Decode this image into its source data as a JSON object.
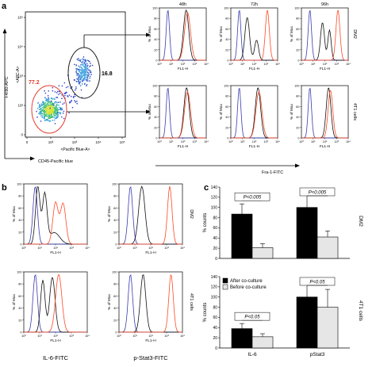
{
  "panel_labels": [
    "a",
    "b",
    "c"
  ],
  "colors": {
    "blue": "#3a3ab0",
    "black": "#111111",
    "red": "#ff4a26",
    "gate": "#222222",
    "gate_red": "#e33b2b",
    "bar_after": "#000000",
    "bar_before": "#e6e6e6"
  },
  "flow_a": {
    "y_label": "F4/80-APC",
    "y_inner_label": "<APC-A>",
    "x_inner_label": "<Pacific Blue-A>",
    "x_label": "CD45-Pacific blue",
    "gate_macrophage_pct": "16.8",
    "gate_tumor_pct": "77.2",
    "x_ticks": [
      "0",
      "10²",
      "10³",
      "10⁴",
      "10⁵"
    ],
    "y_ticks": [
      "0",
      "10²",
      "10³",
      "10⁴",
      "10⁵"
    ]
  },
  "hist_a": {
    "col_titles": [
      "48h",
      "72h",
      "96h"
    ],
    "row_labels": [
      "DM2",
      "4T1 cells"
    ],
    "x_label": "FL1-H",
    "y_label": "% of Max",
    "bottom_label": "Fra-1-FITC",
    "y_ticks": [
      "0",
      "20",
      "40",
      "60",
      "80",
      "100"
    ],
    "x_ticks": [
      "10⁰",
      "10¹",
      "10²",
      "10³",
      "10⁴"
    ]
  },
  "hist_b": {
    "row_labels": [
      "DM2",
      "4T1 cells"
    ],
    "x_label": "FL1-H",
    "y_label": "% of Max",
    "col_bottom_labels": [
      "IL-6-FITC",
      "p-Stat3-FITC"
    ],
    "y_ticks": [
      "0",
      "20",
      "40",
      "60",
      "80",
      "100"
    ],
    "x_ticks": [
      "10⁰",
      "10¹",
      "10²",
      "10³",
      "10⁴"
    ]
  },
  "chart_data": [
    {
      "type": "bar",
      "panel": "c-top",
      "categories": [
        "IL-6",
        "pStat3"
      ],
      "series": [
        {
          "name": "After co-culture",
          "values": [
            87,
            100
          ],
          "errors": [
            20,
            30
          ]
        },
        {
          "name": "Before co-culture",
          "values": [
            21,
            42
          ],
          "errors": [
            8,
            12
          ]
        }
      ],
      "ylabel": "% counts",
      "ylim": [
        0,
        140
      ],
      "yticks": [
        0,
        20,
        40,
        60,
        80,
        100,
        120,
        140
      ],
      "row_label": "DM2",
      "annotations": [
        "P<0.005",
        "P<0.005"
      ],
      "grid": false
    },
    {
      "type": "bar",
      "panel": "c-bottom",
      "categories": [
        "IL-6",
        "pStat3"
      ],
      "series": [
        {
          "name": "After co-culture",
          "values": [
            38,
            100
          ],
          "errors": [
            10,
            35
          ]
        },
        {
          "name": "Before co-culture",
          "values": [
            22,
            80
          ],
          "errors": [
            6,
            35
          ]
        }
      ],
      "ylabel": "% counts",
      "ylim": [
        0,
        140
      ],
      "yticks": [
        0,
        20,
        40,
        60,
        80,
        100,
        120,
        140
      ],
      "row_label": "4T1 cells",
      "annotations": [
        "P<0.05",
        "P<0.05"
      ],
      "legend": "top-left",
      "grid": false
    }
  ]
}
